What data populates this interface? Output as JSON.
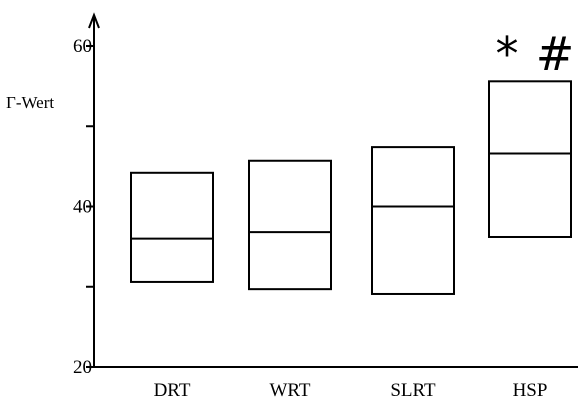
{
  "chart_data": {
    "type": "box",
    "title": "",
    "ylabel": "Γ-Wert",
    "xlabel": "",
    "ylim": [
      20,
      62
    ],
    "y_ticks": [
      20,
      40,
      60
    ],
    "y_minor_ticks": [
      30,
      50
    ],
    "categories": [
      "DRT",
      "WRT",
      "SLRT",
      "HSP"
    ],
    "boxes": [
      {
        "category": "DRT",
        "q1": 30.6,
        "median": 36.0,
        "q3": 44.2
      },
      {
        "category": "WRT",
        "q1": 29.7,
        "median": 36.8,
        "q3": 45.7
      },
      {
        "category": "SLRT",
        "q1": 29.1,
        "median": 40.0,
        "q3": 47.4
      },
      {
        "category": "HSP",
        "q1": 36.2,
        "median": 46.6,
        "q3": 55.6
      }
    ],
    "annotations": [
      {
        "category": "HSP",
        "text": "*"
      },
      {
        "category": "HSP",
        "text": "#"
      }
    ],
    "grid": false,
    "legend": "none"
  }
}
